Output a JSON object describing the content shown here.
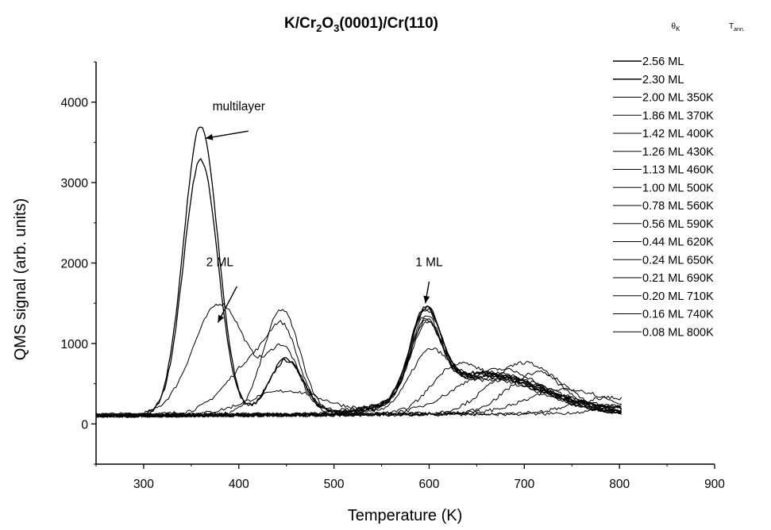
{
  "chart_data": {
    "type": "line",
    "title_parts": [
      "K/Cr",
      "2",
      "O",
      "3",
      "(0001)/Cr(110)"
    ],
    "xlabel": "Temperature (K)",
    "ylabel": "QMS signal (arb. units)",
    "xlim": [
      250,
      900
    ],
    "ylim": [
      -500,
      4500
    ],
    "x_ticks": [
      "300",
      "400",
      "500",
      "600",
      "700",
      "800",
      "900"
    ],
    "y_ticks": [
      "0",
      "1000",
      "2000",
      "3000",
      "4000"
    ],
    "legend_header": {
      "coverage": "θK",
      "coverage_main": "θ",
      "coverage_sub": "K",
      "anneal": "Tann.",
      "anneal_main": "T",
      "anneal_sub": "ann."
    },
    "legend_position": "right",
    "series": [
      {
        "name": "2.56 ML",
        "coverage": "2.56 ML",
        "anneal": "",
        "peaks": [
          [
            360,
            3600,
            18
          ],
          [
            450,
            700,
            18
          ],
          [
            596,
            1050,
            16
          ]
        ],
        "hump": [
          660,
          470,
          60
        ],
        "bg": 100
      },
      {
        "name": "2.30 ML",
        "coverage": "2.30 ML",
        "anneal": "",
        "peaks": [
          [
            360,
            3180,
            18
          ],
          [
            450,
            680,
            18
          ],
          [
            596,
            1030,
            16
          ]
        ],
        "hump": [
          660,
          470,
          60
        ],
        "bg": 100
      },
      {
        "name": "2.00 ML 350K",
        "coverage": "2.00 ML",
        "anneal": "350K",
        "peaks": [
          [
            380,
            1380,
            28
          ],
          [
            447,
            780,
            17
          ],
          [
            596,
            1000,
            16
          ]
        ],
        "hump": [
          660,
          470,
          60
        ],
        "bg": 110
      },
      {
        "name": "1.86 ML 370K",
        "coverage": "1.86 ML",
        "anneal": "370K",
        "peaks": [
          [
            420,
            700,
            30
          ],
          [
            448,
            650,
            15
          ],
          [
            596,
            980,
            16
          ]
        ],
        "hump": [
          660,
          470,
          60
        ],
        "bg": 120
      },
      {
        "name": "1.42 ML 400K",
        "coverage": "1.42 ML",
        "anneal": "400K",
        "peaks": [
          [
            445,
            1300,
            19
          ],
          [
            596,
            960,
            16
          ]
        ],
        "hump": [
          660,
          470,
          60
        ],
        "bg": 110
      },
      {
        "name": "1.26 ML 430K",
        "coverage": "1.26 ML",
        "anneal": "430K",
        "peaks": [
          [
            450,
            300,
            40
          ],
          [
            596,
            940,
            16
          ]
        ],
        "hump": [
          660,
          460,
          60
        ],
        "bg": 100
      },
      {
        "name": "1.13 ML 460K",
        "coverage": "1.13 ML",
        "anneal": "460K",
        "peaks": [
          [
            596,
            900,
            16
          ]
        ],
        "hump": [
          660,
          460,
          60
        ],
        "bg": 110
      },
      {
        "name": "1.00 ML 500K",
        "coverage": "1.00 ML",
        "anneal": "500K",
        "peaks": [
          [
            597,
            880,
            17
          ]
        ],
        "hump": [
          660,
          450,
          60
        ],
        "bg": 100
      },
      {
        "name": "0.78 ML 560K",
        "coverage": "0.78 ML",
        "anneal": "560K",
        "peaks": [
          [
            600,
            600,
            20
          ]
        ],
        "hump": [
          665,
          420,
          55
        ],
        "bg": 100
      },
      {
        "name": "0.56 ML 590K",
        "coverage": "0.56 ML",
        "anneal": "590K",
        "peaks": [
          [
            625,
            420,
            24
          ]
        ],
        "hump": [
          680,
          420,
          45
        ],
        "bg": 100
      },
      {
        "name": "0.44 ML 620K",
        "coverage": "0.44 ML",
        "anneal": "620K",
        "peaks": [],
        "hump": [
          675,
          560,
          45
        ],
        "bg": 100
      },
      {
        "name": "0.24 ML 650K",
        "coverage": "0.24 ML",
        "anneal": "650K",
        "peaks": [],
        "hump": [
          700,
          640,
          35
        ],
        "bg": 100
      },
      {
        "name": "0.21 ML 690K",
        "coverage": "0.21 ML",
        "anneal": "690K",
        "peaks": [],
        "hump": [
          715,
          520,
          32
        ],
        "bg": 100
      },
      {
        "name": "0.20 ML 710K",
        "coverage": "0.20 ML",
        "anneal": "710K",
        "peaks": [],
        "hump": [
          745,
          300,
          40
        ],
        "bg": 110
      },
      {
        "name": "0.16 ML 740K",
        "coverage": "0.16 ML",
        "anneal": "740K",
        "peaks": [],
        "hump": [
          790,
          190,
          35
        ],
        "bg": 110
      },
      {
        "name": "0.08 ML 800K",
        "coverage": "0.08 ML",
        "anneal": "800K",
        "peaks": [],
        "hump": [
          830,
          120,
          40
        ],
        "bg": 100
      }
    ],
    "annotations": [
      {
        "text": "multilayer",
        "x": 400,
        "y": 3900,
        "arrow_to": [
          365,
          3550
        ],
        "arrow_from": [
          410,
          3640
        ]
      },
      {
        "text": "2 ML",
        "x": 380,
        "y": 1960,
        "arrow_to": [
          378,
          1260
        ],
        "arrow_from": [
          398,
          1710
        ]
      },
      {
        "text": "1 ML",
        "x": 600,
        "y": 1960,
        "arrow_to": [
          596,
          1500
        ],
        "arrow_from": [
          600,
          1770
        ]
      }
    ]
  }
}
